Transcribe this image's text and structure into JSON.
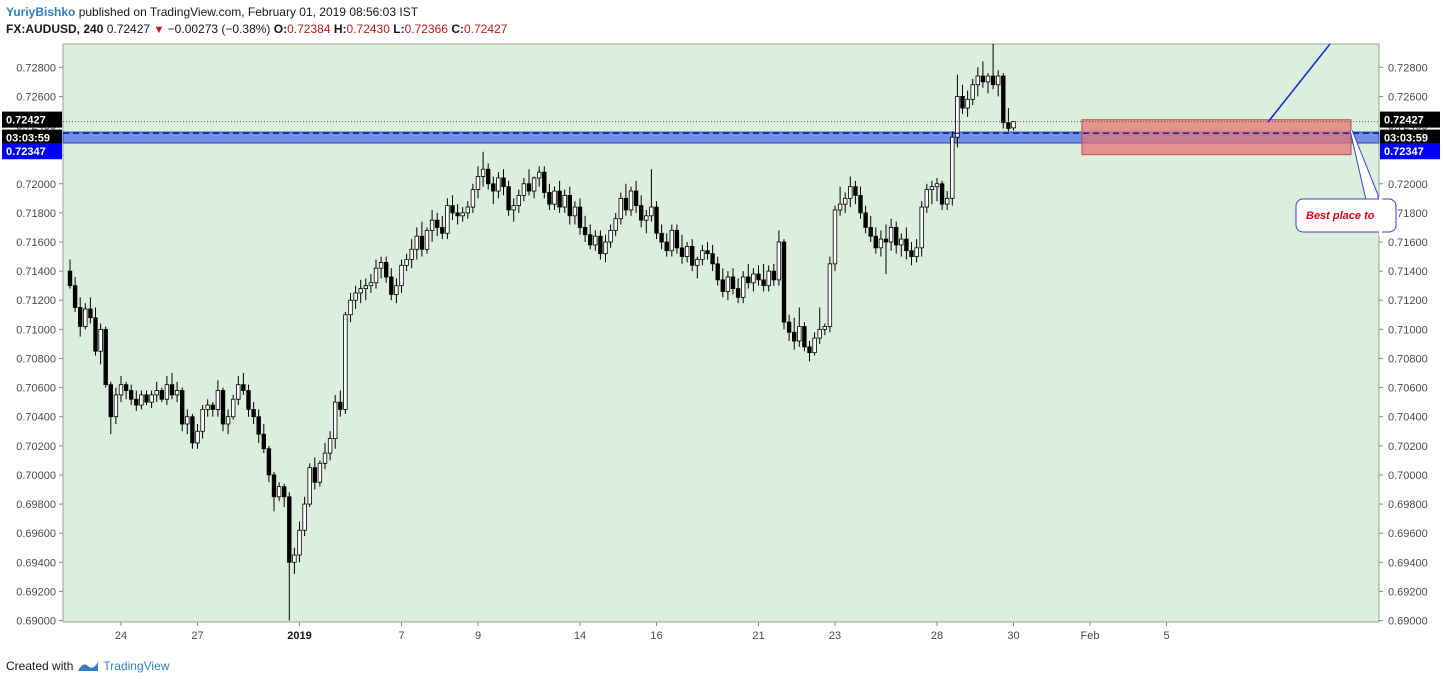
{
  "header": {
    "author": "YuriyBishko",
    "published_text": "published on TradingView.com, February 01, 2019 08:56:03 IST",
    "symbol": "FX:AUDUSD, 240",
    "last": "0.72427",
    "change_arrow": "▼",
    "change": "−0.00273 (−0.38%)",
    "o_label": "O:",
    "o_value": "0.72384",
    "h_label": "H:",
    "h_value": "0.72430",
    "l_label": "L:",
    "l_value": "0.72366",
    "c_label": "C:",
    "c_value": "0.72427"
  },
  "footer": {
    "created_with": "Created with",
    "brand": "TradingView"
  },
  "colors": {
    "background": "#dcefdc",
    "candle_up": "#ffffff",
    "candle_down": "#000000",
    "zone_blue": "#4466ee",
    "zone_red": "#e57373",
    "line_blue": "#1a237e",
    "badge_dark": "#000000",
    "badge_blue": "#0000ff",
    "callout_text": "#e0001b"
  },
  "price_badges": {
    "last_price": "0.72427",
    "countdown": "03:03:59",
    "zone_price": "0.72347"
  },
  "annotation": {
    "callout_text": "Best place to"
  },
  "chart_data": {
    "type": "candlestick",
    "symbol": "FX:AUDUSD",
    "timeframe": "240",
    "ylim": [
      0.6899,
      0.7296
    ],
    "y_ticks": [
      "0.72800",
      "0.72600",
      "0.72400",
      "0.72200",
      "0.72000",
      "0.71800",
      "0.71600",
      "0.71400",
      "0.71200",
      "0.71000",
      "0.70800",
      "0.70600",
      "0.70400",
      "0.70200",
      "0.70000",
      "0.69800",
      "0.69600",
      "0.69400",
      "0.69200",
      "0.69000"
    ],
    "x_ticks": [
      {
        "label": "24",
        "bar": 10
      },
      {
        "label": "27",
        "bar": 25
      },
      {
        "label": "2019",
        "bar": 45,
        "bold": true
      },
      {
        "label": "7",
        "bar": 65
      },
      {
        "label": "9",
        "bar": 80
      },
      {
        "label": "14",
        "bar": 100
      },
      {
        "label": "16",
        "bar": 115
      },
      {
        "label": "21",
        "bar": 135
      },
      {
        "label": "23",
        "bar": 150
      },
      {
        "label": "28",
        "bar": 170
      },
      {
        "label": "30",
        "bar": 185
      },
      {
        "label": "Feb",
        "bar": 200
      },
      {
        "label": "5",
        "bar": 215
      }
    ],
    "candles": [
      [
        0.714,
        0.7148,
        0.7128,
        0.713
      ],
      [
        0.713,
        0.7136,
        0.7112,
        0.7115
      ],
      [
        0.7115,
        0.7122,
        0.7095,
        0.7102
      ],
      [
        0.7102,
        0.7118,
        0.71,
        0.7114
      ],
      [
        0.7114,
        0.7122,
        0.7104,
        0.7108
      ],
      [
        0.7108,
        0.7115,
        0.7082,
        0.7085
      ],
      [
        0.7085,
        0.7104,
        0.7076,
        0.71
      ],
      [
        0.71,
        0.7102,
        0.706,
        0.7062
      ],
      [
        0.7062,
        0.7064,
        0.7028,
        0.704
      ],
      [
        0.704,
        0.706,
        0.7035,
        0.7055
      ],
      [
        0.7055,
        0.7068,
        0.705,
        0.7062
      ],
      [
        0.7062,
        0.7064,
        0.7052,
        0.7058
      ],
      [
        0.7058,
        0.7062,
        0.7048,
        0.7052
      ],
      [
        0.7052,
        0.7058,
        0.7044,
        0.7048
      ],
      [
        0.7048,
        0.7058,
        0.7045,
        0.7055
      ],
      [
        0.7055,
        0.7058,
        0.7048,
        0.705
      ],
      [
        0.705,
        0.7058,
        0.7046,
        0.7055
      ],
      [
        0.7055,
        0.7064,
        0.705,
        0.7058
      ],
      [
        0.7058,
        0.706,
        0.705,
        0.7052
      ],
      [
        0.7052,
        0.7068,
        0.7048,
        0.7062
      ],
      [
        0.7062,
        0.707,
        0.7052,
        0.7055
      ],
      [
        0.7055,
        0.7064,
        0.705,
        0.7058
      ],
      [
        0.7058,
        0.706,
        0.703,
        0.7035
      ],
      [
        0.7035,
        0.7045,
        0.7028,
        0.704
      ],
      [
        0.704,
        0.7042,
        0.7018,
        0.7022
      ],
      [
        0.7022,
        0.7035,
        0.7018,
        0.703
      ],
      [
        0.703,
        0.7048,
        0.7025,
        0.7045
      ],
      [
        0.7045,
        0.7052,
        0.704,
        0.7048
      ],
      [
        0.7048,
        0.705,
        0.704,
        0.7045
      ],
      [
        0.7045,
        0.7065,
        0.704,
        0.7058
      ],
      [
        0.7058,
        0.706,
        0.703,
        0.7035
      ],
      [
        0.7035,
        0.7045,
        0.7028,
        0.704
      ],
      [
        0.704,
        0.7055,
        0.7038,
        0.7052
      ],
      [
        0.7052,
        0.7068,
        0.7048,
        0.7062
      ],
      [
        0.7062,
        0.707,
        0.7055,
        0.7058
      ],
      [
        0.7058,
        0.7062,
        0.704,
        0.7045
      ],
      [
        0.7045,
        0.705,
        0.7035,
        0.704
      ],
      [
        0.704,
        0.7045,
        0.7022,
        0.7028
      ],
      [
        0.7028,
        0.7035,
        0.7015,
        0.7018
      ],
      [
        0.7018,
        0.702,
        0.6995,
        0.7
      ],
      [
        0.7,
        0.7002,
        0.6975,
        0.6985
      ],
      [
        0.6985,
        0.6995,
        0.6982,
        0.6992
      ],
      [
        0.6992,
        0.6994,
        0.6978,
        0.6985
      ],
      [
        0.6985,
        0.6988,
        0.69,
        0.694
      ],
      [
        0.694,
        0.695,
        0.6932,
        0.6945
      ],
      [
        0.6945,
        0.6968,
        0.694,
        0.6962
      ],
      [
        0.6962,
        0.6985,
        0.6958,
        0.698
      ],
      [
        0.698,
        0.7008,
        0.6978,
        0.7005
      ],
      [
        0.7005,
        0.7012,
        0.699,
        0.6995
      ],
      [
        0.6995,
        0.701,
        0.6992,
        0.7008
      ],
      [
        0.7008,
        0.7022,
        0.7004,
        0.7015
      ],
      [
        0.7015,
        0.703,
        0.701,
        0.7025
      ],
      [
        0.7025,
        0.7055,
        0.7018,
        0.705
      ],
      [
        0.705,
        0.7058,
        0.704,
        0.7045
      ],
      [
        0.7045,
        0.7112,
        0.7042,
        0.711
      ],
      [
        0.711,
        0.7125,
        0.7105,
        0.712
      ],
      [
        0.712,
        0.713,
        0.7114,
        0.7125
      ],
      [
        0.7125,
        0.7134,
        0.7118,
        0.7128
      ],
      [
        0.7128,
        0.7135,
        0.712,
        0.713
      ],
      [
        0.713,
        0.7138,
        0.7125,
        0.7132
      ],
      [
        0.7132,
        0.7148,
        0.7128,
        0.7142
      ],
      [
        0.7142,
        0.715,
        0.7135,
        0.7146
      ],
      [
        0.7146,
        0.715,
        0.7132,
        0.7136
      ],
      [
        0.7136,
        0.7142,
        0.712,
        0.7124
      ],
      [
        0.7124,
        0.7135,
        0.7118,
        0.713
      ],
      [
        0.713,
        0.7148,
        0.7125,
        0.7144
      ],
      [
        0.7144,
        0.7152,
        0.714,
        0.7148
      ],
      [
        0.7148,
        0.7162,
        0.7142,
        0.7155
      ],
      [
        0.7155,
        0.717,
        0.7148,
        0.7164
      ],
      [
        0.7164,
        0.7174,
        0.715,
        0.7155
      ],
      [
        0.7155,
        0.717,
        0.7152,
        0.7168
      ],
      [
        0.7168,
        0.7182,
        0.716,
        0.7175
      ],
      [
        0.7175,
        0.718,
        0.7164,
        0.717
      ],
      [
        0.717,
        0.7178,
        0.7162,
        0.7166
      ],
      [
        0.7166,
        0.719,
        0.7162,
        0.7185
      ],
      [
        0.7185,
        0.7192,
        0.7175,
        0.718
      ],
      [
        0.718,
        0.7186,
        0.7172,
        0.7178
      ],
      [
        0.7178,
        0.7184,
        0.7174,
        0.718
      ],
      [
        0.718,
        0.7188,
        0.7176,
        0.7184
      ],
      [
        0.7184,
        0.72,
        0.718,
        0.7196
      ],
      [
        0.7196,
        0.7212,
        0.719,
        0.7205
      ],
      [
        0.7205,
        0.7222,
        0.7198,
        0.721
      ],
      [
        0.721,
        0.7214,
        0.7196,
        0.72
      ],
      [
        0.72,
        0.7205,
        0.7186,
        0.7195
      ],
      [
        0.7195,
        0.7208,
        0.719,
        0.7204
      ],
      [
        0.7204,
        0.721,
        0.7192,
        0.7198
      ],
      [
        0.7198,
        0.7202,
        0.7178,
        0.7182
      ],
      [
        0.7182,
        0.719,
        0.7174,
        0.7185
      ],
      [
        0.7185,
        0.7196,
        0.718,
        0.7192
      ],
      [
        0.7192,
        0.7204,
        0.7188,
        0.72
      ],
      [
        0.72,
        0.721,
        0.7192,
        0.7195
      ],
      [
        0.7195,
        0.7205,
        0.719,
        0.7204
      ],
      [
        0.7204,
        0.7212,
        0.7198,
        0.7208
      ],
      [
        0.7208,
        0.7212,
        0.719,
        0.7194
      ],
      [
        0.7194,
        0.72,
        0.7182,
        0.7186
      ],
      [
        0.7186,
        0.7198,
        0.7182,
        0.7195
      ],
      [
        0.7195,
        0.7202,
        0.718,
        0.7184
      ],
      [
        0.7184,
        0.7196,
        0.718,
        0.7192
      ],
      [
        0.7192,
        0.7198,
        0.7172,
        0.7178
      ],
      [
        0.7178,
        0.7188,
        0.7172,
        0.7184
      ],
      [
        0.7184,
        0.719,
        0.7165,
        0.717
      ],
      [
        0.717,
        0.7178,
        0.716,
        0.7165
      ],
      [
        0.7165,
        0.7172,
        0.7155,
        0.7158
      ],
      [
        0.7158,
        0.7168,
        0.7154,
        0.7164
      ],
      [
        0.7164,
        0.7168,
        0.7148,
        0.7152
      ],
      [
        0.7152,
        0.7165,
        0.7146,
        0.716
      ],
      [
        0.716,
        0.7172,
        0.7156,
        0.7168
      ],
      [
        0.7168,
        0.718,
        0.7164,
        0.7176
      ],
      [
        0.7176,
        0.7194,
        0.7172,
        0.719
      ],
      [
        0.719,
        0.72,
        0.7178,
        0.7182
      ],
      [
        0.7182,
        0.7198,
        0.7178,
        0.7195
      ],
      [
        0.7195,
        0.7202,
        0.718,
        0.7185
      ],
      [
        0.7185,
        0.7192,
        0.717,
        0.7175
      ],
      [
        0.7175,
        0.7182,
        0.7166,
        0.7178
      ],
      [
        0.7178,
        0.721,
        0.7174,
        0.7184
      ],
      [
        0.7184,
        0.7188,
        0.7162,
        0.7166
      ],
      [
        0.7166,
        0.7172,
        0.7155,
        0.716
      ],
      [
        0.716,
        0.7166,
        0.715,
        0.7154
      ],
      [
        0.7154,
        0.7172,
        0.715,
        0.7168
      ],
      [
        0.7168,
        0.7172,
        0.7152,
        0.7156
      ],
      [
        0.7156,
        0.7165,
        0.7145,
        0.715
      ],
      [
        0.715,
        0.716,
        0.7146,
        0.7157
      ],
      [
        0.7157,
        0.7162,
        0.714,
        0.7144
      ],
      [
        0.7144,
        0.715,
        0.7135,
        0.7148
      ],
      [
        0.7148,
        0.7158,
        0.7144,
        0.7154
      ],
      [
        0.7154,
        0.716,
        0.7148,
        0.7152
      ],
      [
        0.7152,
        0.7158,
        0.714,
        0.7145
      ],
      [
        0.7145,
        0.715,
        0.713,
        0.7134
      ],
      [
        0.7134,
        0.7142,
        0.7122,
        0.7126
      ],
      [
        0.7126,
        0.714,
        0.712,
        0.7136
      ],
      [
        0.7136,
        0.7142,
        0.7124,
        0.7128
      ],
      [
        0.7128,
        0.7135,
        0.7118,
        0.7122
      ],
      [
        0.7122,
        0.714,
        0.7118,
        0.7136
      ],
      [
        0.7136,
        0.7145,
        0.7128,
        0.7132
      ],
      [
        0.7132,
        0.7142,
        0.7126,
        0.7138
      ],
      [
        0.7138,
        0.7144,
        0.713,
        0.7134
      ],
      [
        0.7134,
        0.7145,
        0.7126,
        0.713
      ],
      [
        0.713,
        0.7144,
        0.7126,
        0.714
      ],
      [
        0.714,
        0.7145,
        0.713,
        0.7134
      ],
      [
        0.7134,
        0.7168,
        0.713,
        0.716
      ],
      [
        0.716,
        0.7162,
        0.71,
        0.7105
      ],
      [
        0.7105,
        0.711,
        0.7092,
        0.7098
      ],
      [
        0.7098,
        0.7108,
        0.7086,
        0.7092
      ],
      [
        0.7092,
        0.7115,
        0.7088,
        0.7102
      ],
      [
        0.7102,
        0.7105,
        0.7085,
        0.7088
      ],
      [
        0.7088,
        0.7092,
        0.7078,
        0.7084
      ],
      [
        0.7084,
        0.7098,
        0.7082,
        0.7094
      ],
      [
        0.7094,
        0.7115,
        0.709,
        0.71
      ],
      [
        0.71,
        0.7104,
        0.7096,
        0.7102
      ],
      [
        0.7102,
        0.715,
        0.7098,
        0.7145
      ],
      [
        0.7145,
        0.7185,
        0.714,
        0.7182
      ],
      [
        0.7182,
        0.7198,
        0.7178,
        0.7186
      ],
      [
        0.7186,
        0.7194,
        0.718,
        0.719
      ],
      [
        0.719,
        0.7205,
        0.7184,
        0.7198
      ],
      [
        0.7198,
        0.7202,
        0.7186,
        0.7192
      ],
      [
        0.7192,
        0.7198,
        0.7176,
        0.718
      ],
      [
        0.718,
        0.7185,
        0.7166,
        0.717
      ],
      [
        0.717,
        0.7178,
        0.716,
        0.7164
      ],
      [
        0.7164,
        0.717,
        0.7152,
        0.7156
      ],
      [
        0.7156,
        0.7168,
        0.715,
        0.7162
      ],
      [
        0.7162,
        0.7172,
        0.7138,
        0.716
      ],
      [
        0.716,
        0.7176,
        0.7154,
        0.717
      ],
      [
        0.717,
        0.7174,
        0.7152,
        0.7158
      ],
      [
        0.7158,
        0.7166,
        0.715,
        0.7162
      ],
      [
        0.7162,
        0.717,
        0.7148,
        0.7154
      ],
      [
        0.7154,
        0.716,
        0.7144,
        0.715
      ],
      [
        0.715,
        0.7162,
        0.7146,
        0.7156
      ],
      [
        0.7156,
        0.7188,
        0.715,
        0.7184
      ],
      [
        0.7184,
        0.72,
        0.718,
        0.7196
      ],
      [
        0.7196,
        0.7202,
        0.7186,
        0.7198
      ],
      [
        0.7198,
        0.7204,
        0.7188,
        0.72
      ],
      [
        0.72,
        0.7202,
        0.7182,
        0.7186
      ],
      [
        0.7186,
        0.7195,
        0.7182,
        0.719
      ],
      [
        0.719,
        0.7236,
        0.7185,
        0.7232
      ],
      [
        0.7232,
        0.7275,
        0.7225,
        0.726
      ],
      [
        0.726,
        0.7268,
        0.7248,
        0.7252
      ],
      [
        0.7252,
        0.7264,
        0.7246,
        0.7258
      ],
      [
        0.7258,
        0.7272,
        0.7254,
        0.7268
      ],
      [
        0.7268,
        0.728,
        0.726,
        0.7274
      ],
      [
        0.7274,
        0.7284,
        0.7266,
        0.727
      ],
      [
        0.727,
        0.7276,
        0.7262,
        0.7274
      ],
      [
        0.7274,
        0.7296,
        0.7265,
        0.7268
      ],
      [
        0.7268,
        0.7278,
        0.726,
        0.7274
      ],
      [
        0.7274,
        0.7276,
        0.7238,
        0.7242
      ],
      [
        0.7242,
        0.7252,
        0.7236,
        0.7238
      ],
      [
        0.72384,
        0.7243,
        0.72366,
        0.72427
      ]
    ],
    "zones": [
      {
        "name": "support-zone",
        "from": 0.7228,
        "to": 0.72355
      },
      {
        "name": "target-zone",
        "from": 0.722,
        "to": 0.7244,
        "from_bar": 199
      }
    ],
    "lines": [
      {
        "name": "last-price-line",
        "price": 0.72427
      },
      {
        "name": "zone-price-line",
        "price": 0.72347
      }
    ]
  }
}
